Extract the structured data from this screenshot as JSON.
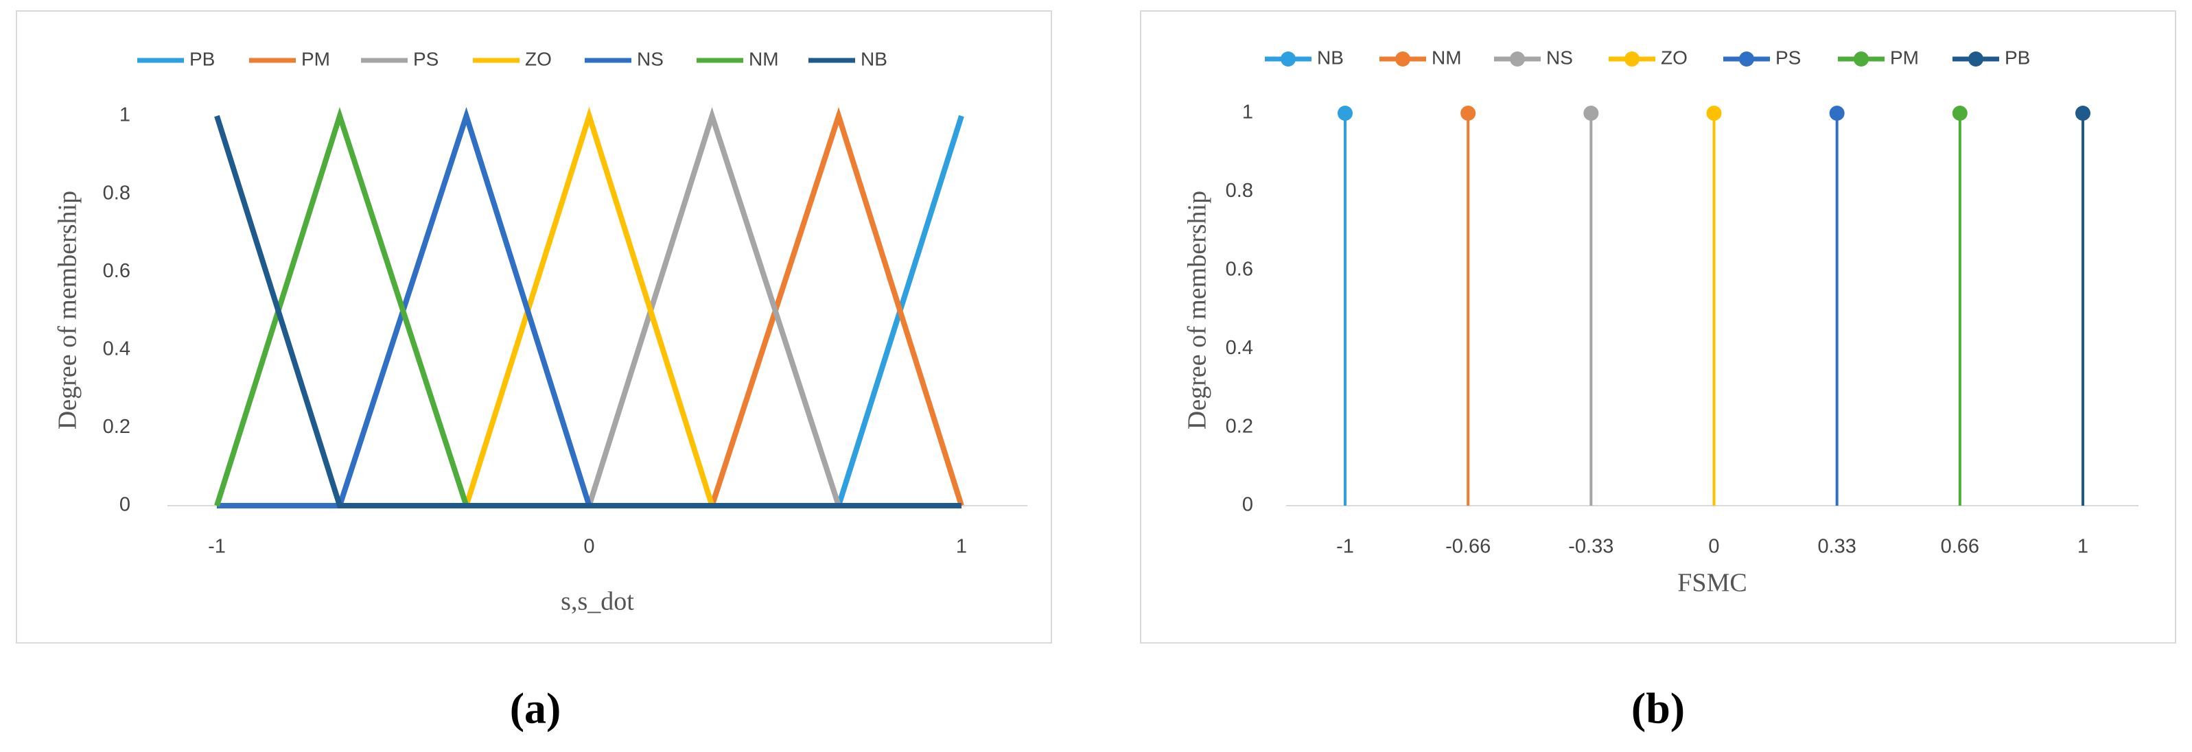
{
  "chart_data": [
    {
      "type": "line",
      "panel_label": "(a)",
      "xlabel": "s,s_dot",
      "ylabel": "Degree of membership",
      "x": [
        -1,
        -0.67,
        -0.33,
        0,
        0.33,
        0.67,
        1
      ],
      "xlim": [
        -1,
        1
      ],
      "xticks": [
        -1,
        0,
        1
      ],
      "ylim": [
        0,
        1
      ],
      "yticks": [
        0,
        0.2,
        0.4,
        0.6,
        0.8,
        1
      ],
      "series": [
        {
          "name": "PB",
          "color": "#2e9fdf",
          "values": [
            0,
            0,
            0,
            0,
            0,
            0,
            1
          ]
        },
        {
          "name": "PM",
          "color": "#ed7d31",
          "values": [
            0,
            0,
            0,
            0,
            0,
            1,
            0
          ]
        },
        {
          "name": "PS",
          "color": "#a5a5a5",
          "values": [
            0,
            0,
            0,
            0,
            1,
            0,
            0
          ]
        },
        {
          "name": "ZO",
          "color": "#ffc000",
          "values": [
            0,
            0,
            0,
            1,
            0,
            0,
            0
          ]
        },
        {
          "name": "NS",
          "color": "#3070c4",
          "values": [
            0,
            0,
            1,
            0,
            0,
            0,
            0
          ]
        },
        {
          "name": "NM",
          "color": "#4ead3a",
          "values": [
            0,
            1,
            0,
            0,
            0,
            0,
            0
          ]
        },
        {
          "name": "NB",
          "color": "#1f5a8c",
          "values": [
            1,
            0,
            0,
            0,
            0,
            0,
            0
          ]
        }
      ]
    },
    {
      "type": "stem",
      "panel_label": "(b)",
      "xlabel": "FSMC",
      "ylabel": "Degree of membership",
      "categories": [
        "-1",
        "-0.66",
        "-0.33",
        "0",
        "0.33",
        "0.66",
        "1"
      ],
      "ylim": [
        0,
        1
      ],
      "yticks": [
        0,
        0.2,
        0.4,
        0.6,
        0.8,
        1
      ],
      "series": [
        {
          "name": "NB",
          "color": "#2e9fdf",
          "values": [
            1,
            null,
            null,
            null,
            null,
            null,
            null
          ]
        },
        {
          "name": "NM",
          "color": "#ed7d31",
          "values": [
            null,
            1,
            null,
            null,
            null,
            null,
            null
          ]
        },
        {
          "name": "NS",
          "color": "#a5a5a5",
          "values": [
            null,
            null,
            1,
            null,
            null,
            null,
            null
          ]
        },
        {
          "name": "ZO",
          "color": "#ffc000",
          "values": [
            null,
            null,
            null,
            1,
            null,
            null,
            null
          ]
        },
        {
          "name": "PS",
          "color": "#3070c4",
          "values": [
            null,
            null,
            null,
            null,
            1,
            null,
            null
          ]
        },
        {
          "name": "PM",
          "color": "#4ead3a",
          "values": [
            null,
            null,
            null,
            null,
            null,
            1,
            null
          ]
        },
        {
          "name": "PB",
          "color": "#1f5a8c",
          "values": [
            null,
            null,
            null,
            null,
            null,
            null,
            1
          ]
        }
      ]
    }
  ]
}
